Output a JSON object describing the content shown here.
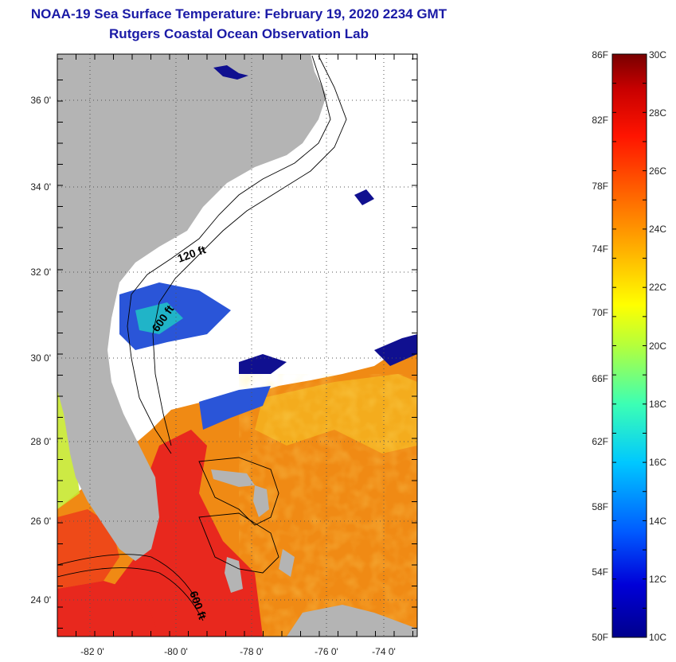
{
  "title": "NOAA-19 Sea Surface Temperature:  February 19, 2020 2234 GMT",
  "subtitle": "Rutgers Coastal Ocean Observation Lab",
  "map": {
    "lon_ticks": [
      "-82 0'",
      "-80 0'",
      "-78 0'",
      "-76 0'",
      "-74 0'"
    ],
    "lat_ticks": [
      "36 0'",
      "34 0'",
      "32 0'",
      "30 0'",
      "28 0'",
      "26 0'",
      "24 0'"
    ],
    "contour_labels": [
      "120 ft",
      "600 ft",
      "600 ft"
    ],
    "colors": {
      "land": "#b4b4b4",
      "cloud": "#ffffff",
      "warm_water": "#f08a14",
      "hot_water": "#e8281e",
      "cool_water": "#2a55d8",
      "cold_water": "#101090"
    }
  },
  "colorbar": {
    "f_labels": [
      "86F",
      "82F",
      "78F",
      "74F",
      "70F",
      "66F",
      "62F",
      "58F",
      "54F",
      "50F"
    ],
    "c_labels": [
      "30C",
      "28C",
      "26C",
      "24C",
      "22C",
      "20C",
      "18C",
      "16C",
      "14C",
      "12C",
      "10C"
    ],
    "stops": [
      "#00008c",
      "#0000d8",
      "#005aff",
      "#00c8ff",
      "#3cffb4",
      "#b4ff3c",
      "#ffff00",
      "#ffb400",
      "#ff6400",
      "#ff1400",
      "#c80000",
      "#780000"
    ]
  }
}
